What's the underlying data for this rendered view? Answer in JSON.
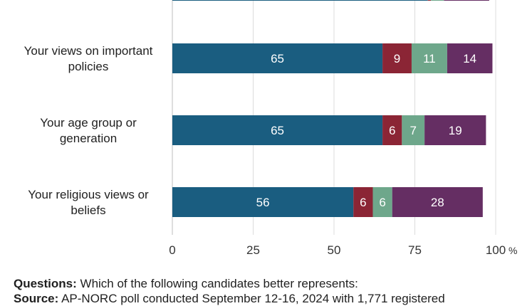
{
  "chart_data": {
    "type": "bar",
    "orientation": "horizontal",
    "stacked": true,
    "xlim": [
      0,
      100
    ],
    "xticks": [
      "0",
      "25",
      "50",
      "75",
      "100"
    ],
    "x_unit": "%",
    "grid": true,
    "categories": [
      "",
      "Your views on important policies",
      "Your age group or generation",
      "Your religious views or beliefs"
    ],
    "category_lines": [
      [],
      [
        "Your views on important",
        "policies"
      ],
      [
        "Your age group or",
        "generation"
      ],
      [
        "Your religious views or",
        "beliefs"
      ]
    ],
    "series": [
      {
        "color": "#1a5d80",
        "values": [
          79,
          65,
          65,
          56
        ],
        "labels": [
          "",
          "65",
          "65",
          "56"
        ]
      },
      {
        "color": "#8b2535",
        "values": [
          1,
          9,
          6,
          6
        ],
        "labels": [
          "",
          "9",
          "6",
          "6"
        ]
      },
      {
        "color": "#6ea78b",
        "values": [
          4,
          11,
          7,
          6
        ],
        "labels": [
          "",
          "11",
          "7",
          "6"
        ]
      },
      {
        "color": "#652e63",
        "values": [
          14,
          14,
          19,
          28
        ],
        "labels": [
          "",
          "14",
          "19",
          "28"
        ]
      }
    ]
  },
  "footnotes": {
    "questions_label": "Questions:",
    "questions_text": " Which of the following candidates better represents:",
    "source_label": "Source:",
    "source_text": " AP-NORC poll conducted September 12-16, 2024 with 1,771 registered"
  }
}
